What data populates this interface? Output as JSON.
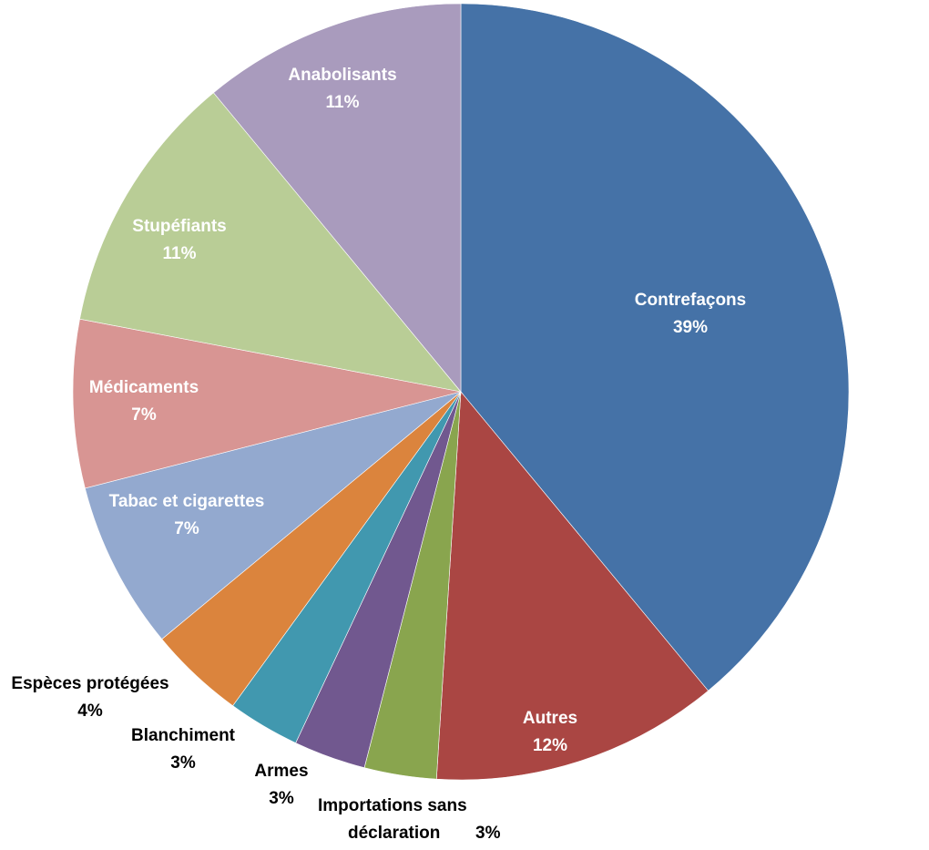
{
  "chart_data": {
    "type": "pie",
    "title": "",
    "slices": [
      {
        "label": "Contrefaçons",
        "value": 39,
        "value_label": "39%",
        "color": "#4572a7",
        "label_pos": "inside"
      },
      {
        "label": "Autres",
        "value": 12,
        "value_label": "12%",
        "color": "#aa4643",
        "label_pos": "inside"
      },
      {
        "label": "Importations sans déclaration",
        "value": 3,
        "value_label": "3%",
        "color": "#89a54e",
        "label_pos": "outside"
      },
      {
        "label": "Armes",
        "value": 3,
        "value_label": "3%",
        "color": "#71588f",
        "label_pos": "outside"
      },
      {
        "label": "Blanchiment",
        "value": 3,
        "value_label": "3%",
        "color": "#4198af",
        "label_pos": "outside"
      },
      {
        "label": "Espèces protégées",
        "value": 4,
        "value_label": "4%",
        "color": "#db843d",
        "label_pos": "outside"
      },
      {
        "label": "Tabac et cigarettes",
        "value": 7,
        "value_label": "7%",
        "color": "#93a9cf",
        "label_pos": "inside"
      },
      {
        "label": "Médicaments",
        "value": 7,
        "value_label": "7%",
        "color": "#d89593",
        "label_pos": "inside"
      },
      {
        "label": "Stupéfiants",
        "value": 11,
        "value_label": "11%",
        "color": "#b9cd96",
        "label_pos": "inside"
      },
      {
        "label": "Anabolisants",
        "value": 11,
        "value_label": "11%",
        "color": "#a99bbd",
        "label_pos": "inside"
      }
    ]
  }
}
